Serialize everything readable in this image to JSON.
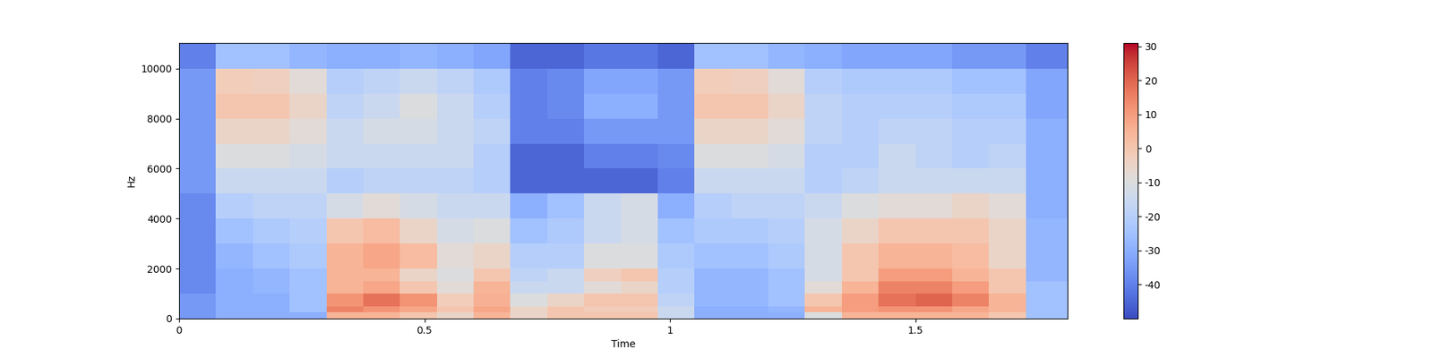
{
  "chart_data": {
    "type": "heatmap",
    "x_label": "Time",
    "y_label": "Hz",
    "color": "coolwarm",
    "time_edges": [
      0,
      0.075,
      0.15,
      0.225,
      0.3,
      0.375,
      0.45,
      0.525,
      0.6,
      0.675,
      0.75,
      0.825,
      0.9,
      0.975,
      1.05,
      1.125,
      1.2,
      1.275,
      1.35,
      1.425,
      1.5,
      1.575,
      1.65,
      1.725,
      1.81
    ],
    "freq_edges": [
      0,
      250,
      500,
      1000,
      1500,
      2000,
      3000,
      4000,
      5000,
      6000,
      7000,
      8000,
      9000,
      10000,
      11025
    ],
    "cells": [
      [
        -35,
        -30,
        -30,
        -30,
        5,
        5,
        0,
        -5,
        5,
        -5,
        0,
        0,
        0,
        -15,
        -30,
        -30,
        -30,
        -10,
        5,
        5,
        5,
        5,
        0,
        -25
      ],
      [
        -35,
        -30,
        -30,
        -25,
        15,
        12,
        8,
        0,
        8,
        -5,
        0,
        -2,
        -2,
        -15,
        -30,
        -30,
        -28,
        5,
        10,
        12,
        12,
        8,
        5,
        -25
      ],
      [
        -35,
        -30,
        -30,
        -25,
        12,
        18,
        12,
        -2,
        6,
        -10,
        -5,
        0,
        0,
        -18,
        -28,
        -28,
        -25,
        0,
        10,
        18,
        20,
        15,
        5,
        -25
      ],
      [
        -38,
        -30,
        -28,
        -25,
        5,
        8,
        0,
        -8,
        5,
        -15,
        -15,
        -8,
        -5,
        -20,
        -28,
        -28,
        -25,
        -8,
        5,
        15,
        15,
        10,
        0,
        -25
      ],
      [
        -38,
        -30,
        -28,
        -25,
        5,
        5,
        -5,
        -10,
        0,
        -18,
        -15,
        -3,
        0,
        -20,
        -28,
        -28,
        -25,
        -12,
        0,
        10,
        10,
        5,
        0,
        -28
      ],
      [
        -38,
        -28,
        -25,
        -22,
        5,
        8,
        3,
        -8,
        -5,
        -20,
        -20,
        -10,
        -10,
        -22,
        -25,
        -25,
        -22,
        -12,
        0,
        5,
        5,
        3,
        -5,
        -28
      ],
      [
        -38,
        -25,
        -22,
        -20,
        0,
        3,
        -5,
        -12,
        -10,
        -25,
        -22,
        -15,
        -12,
        -25,
        -22,
        -22,
        -20,
        -12,
        -5,
        0,
        0,
        0,
        -5,
        -28
      ],
      [
        -38,
        -20,
        -18,
        -18,
        -12,
        -8,
        -12,
        -15,
        -15,
        -30,
        -25,
        -15,
        -12,
        -30,
        -20,
        -18,
        -18,
        -15,
        -10,
        -8,
        -8,
        -5,
        -8,
        -30
      ],
      [
        -35,
        -15,
        -15,
        -15,
        -20,
        -18,
        -18,
        -18,
        -20,
        -45,
        -45,
        -45,
        -45,
        -40,
        -15,
        -15,
        -15,
        -20,
        -18,
        -15,
        -15,
        -15,
        -15,
        -30
      ],
      [
        -35,
        -10,
        -10,
        -12,
        -15,
        -15,
        -15,
        -15,
        -20,
        -45,
        -45,
        -40,
        -40,
        -38,
        -10,
        -10,
        -12,
        -20,
        -20,
        -15,
        -18,
        -20,
        -18,
        -30
      ],
      [
        -35,
        -5,
        -5,
        -8,
        -15,
        -12,
        -12,
        -15,
        -18,
        -40,
        -40,
        -35,
        -35,
        -35,
        -5,
        -5,
        -8,
        -18,
        -20,
        -18,
        -18,
        -20,
        -20,
        -30
      ],
      [
        -35,
        0,
        0,
        -5,
        -18,
        -15,
        -10,
        -15,
        -20,
        -40,
        -38,
        -30,
        -30,
        -35,
        0,
        0,
        -5,
        -18,
        -20,
        -20,
        -20,
        -22,
        -22,
        -32
      ],
      [
        -35,
        -2,
        -3,
        -8,
        -20,
        -18,
        -15,
        -18,
        -22,
        -40,
        -38,
        -32,
        -32,
        -35,
        -2,
        -3,
        -8,
        -20,
        -22,
        -22,
        -22,
        -25,
        -25,
        -32
      ],
      [
        -40,
        -25,
        -25,
        -28,
        -30,
        -30,
        -28,
        -30,
        -32,
        -45,
        -45,
        -42,
        -42,
        -45,
        -25,
        -25,
        -28,
        -30,
        -32,
        -32,
        -32,
        -35,
        -35,
        -40
      ]
    ],
    "xlim": [
      0,
      1.81
    ],
    "xticks": [
      0,
      0.5,
      1,
      1.5
    ],
    "ylim": [
      0,
      11025
    ],
    "yticks": [
      0,
      2000,
      4000,
      6000,
      8000,
      10000
    ],
    "colorbar": {
      "range": [
        -50,
        31
      ],
      "ticks": [
        -40,
        -30,
        -20,
        -10,
        0,
        10,
        20,
        30
      ]
    }
  }
}
